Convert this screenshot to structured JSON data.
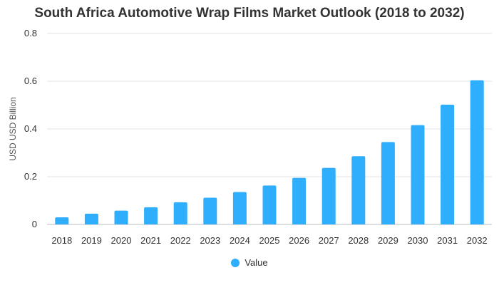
{
  "chart_data": {
    "type": "bar",
    "title": "South Africa Automotive Wrap Films Market Outlook (2018 to 2032)",
    "xlabel": "",
    "ylabel": "USD USD Billion",
    "ylim": [
      0,
      0.8
    ],
    "yticks": [
      "0",
      "0.2",
      "0.4",
      "0.6",
      "0.8"
    ],
    "categories": [
      "2018",
      "2019",
      "2020",
      "2021",
      "2022",
      "2023",
      "2024",
      "2025",
      "2026",
      "2027",
      "2028",
      "2029",
      "2030",
      "2031",
      "2032"
    ],
    "series": [
      {
        "name": "Value",
        "color": "#2eaefc",
        "values": [
          0.03,
          0.045,
          0.058,
          0.072,
          0.093,
          0.112,
          0.136,
          0.163,
          0.195,
          0.237,
          0.286,
          0.345,
          0.416,
          0.502,
          0.604
        ]
      }
    ],
    "grid": true,
    "legend_position": "bottom"
  }
}
